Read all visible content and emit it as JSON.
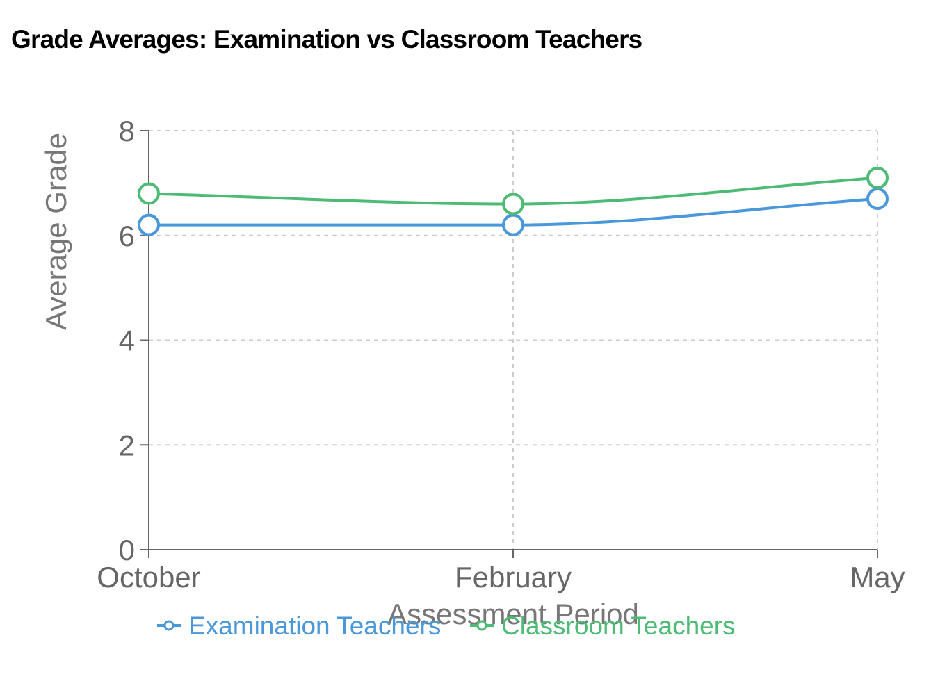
{
  "chart_data": {
    "type": "line",
    "title": "Grade Averages: Examination vs Classroom Teachers",
    "xlabel": "Assessment Period",
    "ylabel": "Average Grade",
    "categories": [
      "October",
      "February",
      "May"
    ],
    "ylim": [
      0,
      8
    ],
    "yticks": [
      0,
      2,
      4,
      6,
      8
    ],
    "grid": true,
    "legend_position": "bottom",
    "series": [
      {
        "name": "Examination Teachers",
        "values": [
          6.2,
          6.2,
          6.7
        ],
        "color": "#4a97d9"
      },
      {
        "name": "Classroom Teachers",
        "values": [
          6.8,
          6.6,
          7.1
        ],
        "color": "#4dbb75"
      }
    ]
  }
}
